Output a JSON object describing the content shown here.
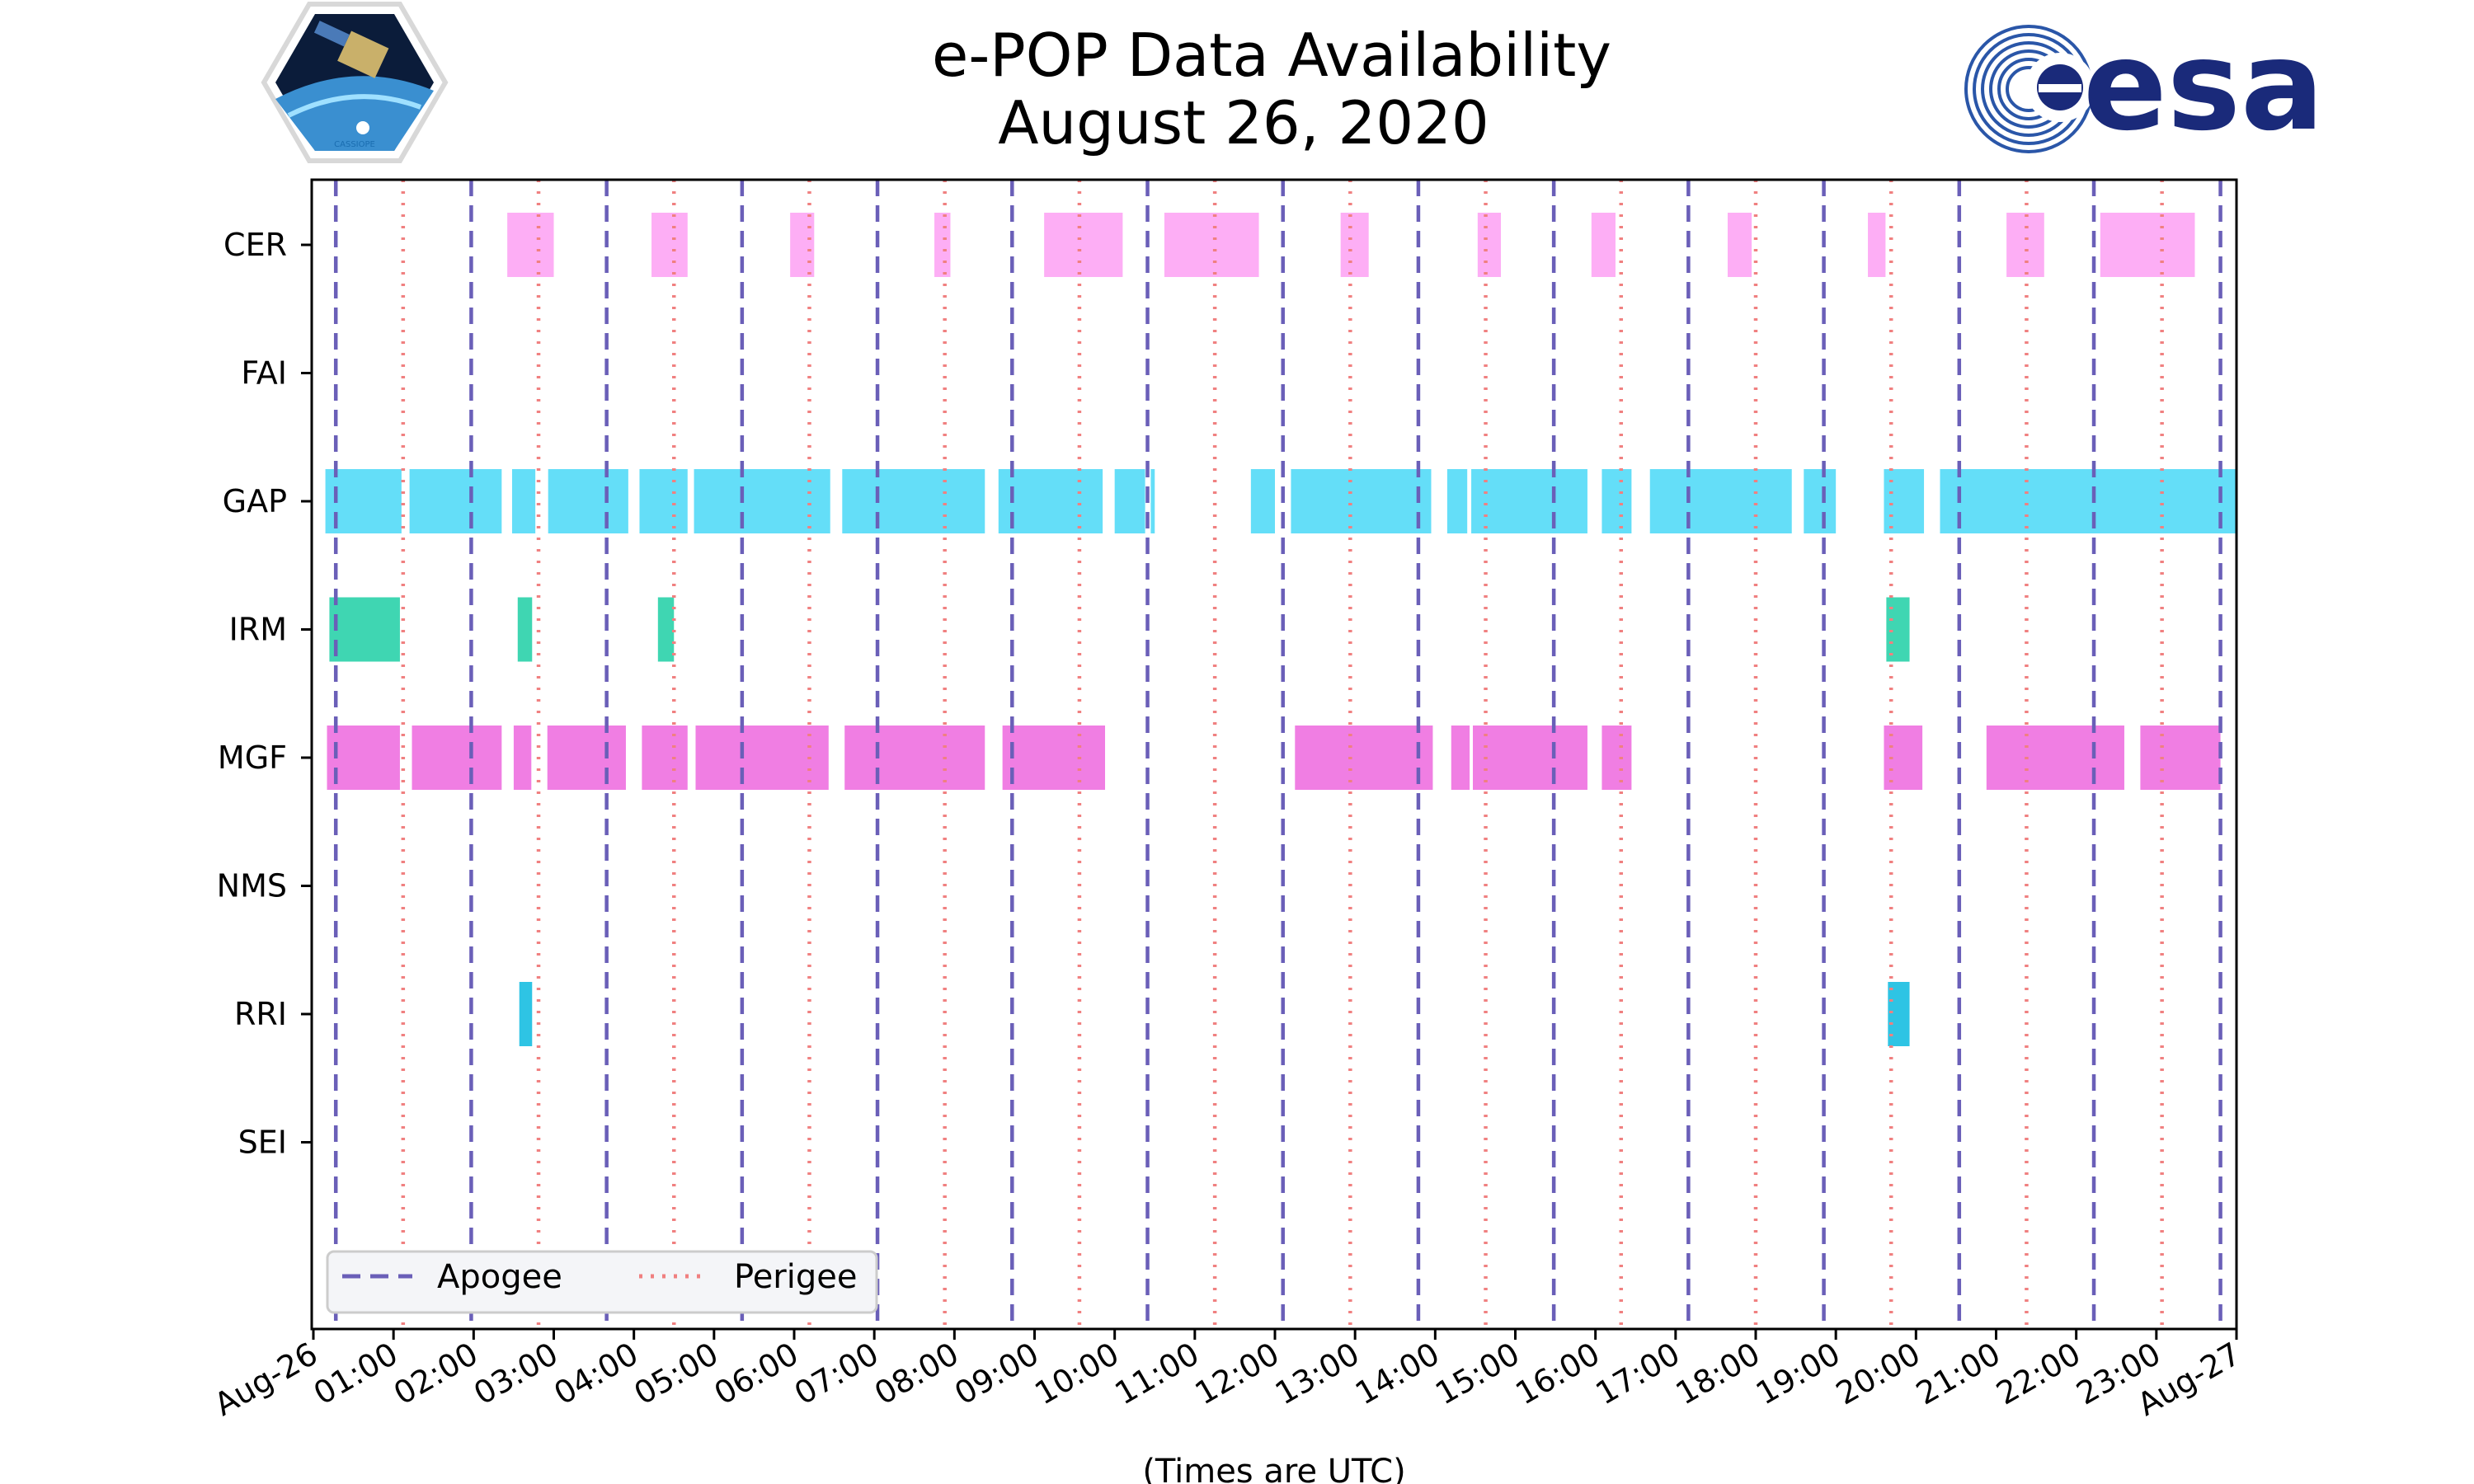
{
  "chart_data": {
    "type": "timeline",
    "title": [
      "e-POP Data Availability",
      "August 26, 2020"
    ],
    "xlabel": "(Times are UTC)",
    "x_unit": "hours UTC",
    "xlim": [
      0,
      24
    ],
    "x_tick_labels": [
      "Aug-26",
      "01:00",
      "02:00",
      "03:00",
      "04:00",
      "05:00",
      "06:00",
      "07:00",
      "08:00",
      "09:00",
      "10:00",
      "11:00",
      "12:00",
      "13:00",
      "14:00",
      "15:00",
      "16:00",
      "17:00",
      "18:00",
      "19:00",
      "20:00",
      "21:00",
      "22:00",
      "23:00",
      "Aug-27"
    ],
    "instruments": [
      "CER",
      "FAI",
      "GAP",
      "IRM",
      "MGF",
      "NMS",
      "RRI",
      "SEI"
    ],
    "colors": {
      "CER": "#fdaef5",
      "GAP": "#64def8",
      "IRM": "#3fd6b2",
      "MGF": "#f07ee3",
      "RRI": "#2ec4e4",
      "apogee": "#6a5fb8",
      "perigee": "#f08080"
    },
    "series": [
      {
        "name": "CER",
        "intervals": [
          [
            2.42,
            3.0
          ],
          [
            4.22,
            4.67
          ],
          [
            5.95,
            6.25
          ],
          [
            7.75,
            7.95
          ],
          [
            9.12,
            10.1
          ],
          [
            10.62,
            11.8
          ],
          [
            12.82,
            13.17
          ],
          [
            14.53,
            14.82
          ],
          [
            15.95,
            16.25
          ],
          [
            17.65,
            17.95
          ],
          [
            19.4,
            19.62
          ],
          [
            21.13,
            21.6
          ],
          [
            22.3,
            23.48
          ]
        ]
      },
      {
        "name": "FAI",
        "intervals": []
      },
      {
        "name": "GAP",
        "intervals": [
          [
            0.15,
            1.1
          ],
          [
            1.2,
            2.35
          ],
          [
            2.48,
            2.77
          ],
          [
            2.93,
            3.93
          ],
          [
            4.07,
            4.67
          ],
          [
            4.75,
            6.45
          ],
          [
            6.6,
            8.38
          ],
          [
            8.55,
            9.85
          ],
          [
            10.0,
            10.38
          ],
          [
            10.45,
            10.5
          ],
          [
            11.7,
            12.0
          ],
          [
            12.2,
            13.95
          ],
          [
            14.15,
            14.4
          ],
          [
            14.45,
            15.9
          ],
          [
            16.08,
            16.45
          ],
          [
            16.68,
            18.45
          ],
          [
            18.6,
            19.0
          ],
          [
            19.6,
            20.1
          ],
          [
            20.3,
            24.0
          ]
        ]
      },
      {
        "name": "IRM",
        "intervals": [
          [
            0.2,
            1.08
          ],
          [
            2.55,
            2.73
          ],
          [
            4.3,
            4.5
          ],
          [
            19.63,
            19.92
          ]
        ]
      },
      {
        "name": "MGF",
        "intervals": [
          [
            0.17,
            1.08
          ],
          [
            1.23,
            2.35
          ],
          [
            2.5,
            2.72
          ],
          [
            2.92,
            3.9
          ],
          [
            4.1,
            4.67
          ],
          [
            4.77,
            6.43
          ],
          [
            6.63,
            8.38
          ],
          [
            8.6,
            9.88
          ],
          [
            12.25,
            13.97
          ],
          [
            14.2,
            14.43
          ],
          [
            14.47,
            15.9
          ],
          [
            16.08,
            16.45
          ],
          [
            19.6,
            20.08
          ],
          [
            20.88,
            22.6
          ],
          [
            22.8,
            23.8
          ]
        ]
      },
      {
        "name": "NMS",
        "intervals": []
      },
      {
        "name": "RRI",
        "intervals": [
          [
            2.57,
            2.73
          ],
          [
            19.65,
            19.92
          ]
        ]
      },
      {
        "name": "SEI",
        "intervals": []
      }
    ],
    "apogee_times": [
      0.28,
      1.97,
      3.66,
      5.35,
      7.04,
      8.72,
      10.41,
      12.1,
      13.79,
      15.48,
      17.16,
      18.85,
      20.54,
      22.22,
      23.8
    ],
    "perigee_times": [
      1.12,
      2.81,
      4.5,
      6.19,
      7.88,
      9.56,
      11.25,
      12.94,
      14.63,
      16.32,
      18.0,
      19.69,
      21.38,
      23.07
    ],
    "legend": {
      "position": "lower-left",
      "entries": [
        "Apogee",
        "Perigee"
      ]
    }
  },
  "logos": {
    "left_badge_text": "CASSIOPE",
    "right_logo_text": "esa"
  }
}
